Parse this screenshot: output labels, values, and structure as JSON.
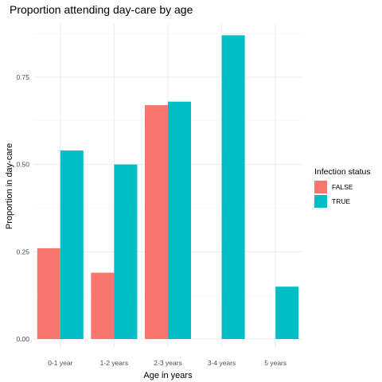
{
  "chart_data": {
    "type": "bar",
    "title": "Proportion attending day-care by age",
    "xlabel": "Age in years",
    "ylabel": "Proportion in day-care",
    "categories": [
      "0-1 year",
      "1-2 years",
      "2-3 years",
      "3-4 years",
      "5 years"
    ],
    "series": [
      {
        "name": "FALSE",
        "color": "#f8766d",
        "values": [
          0.26,
          0.19,
          0.67,
          null,
          null
        ]
      },
      {
        "name": "TRUE",
        "color": "#00bfc4",
        "values": [
          0.54,
          0.5,
          0.68,
          0.87,
          0.15
        ]
      }
    ],
    "yticks": [
      0.0,
      0.25,
      0.5,
      0.75
    ],
    "ytick_labels": [
      "0.00",
      "0.25",
      "0.50",
      "0.75"
    ],
    "ylim": [
      0,
      0.92
    ],
    "grid": true,
    "legend": {
      "title": "Infection status",
      "placement": "right"
    }
  }
}
